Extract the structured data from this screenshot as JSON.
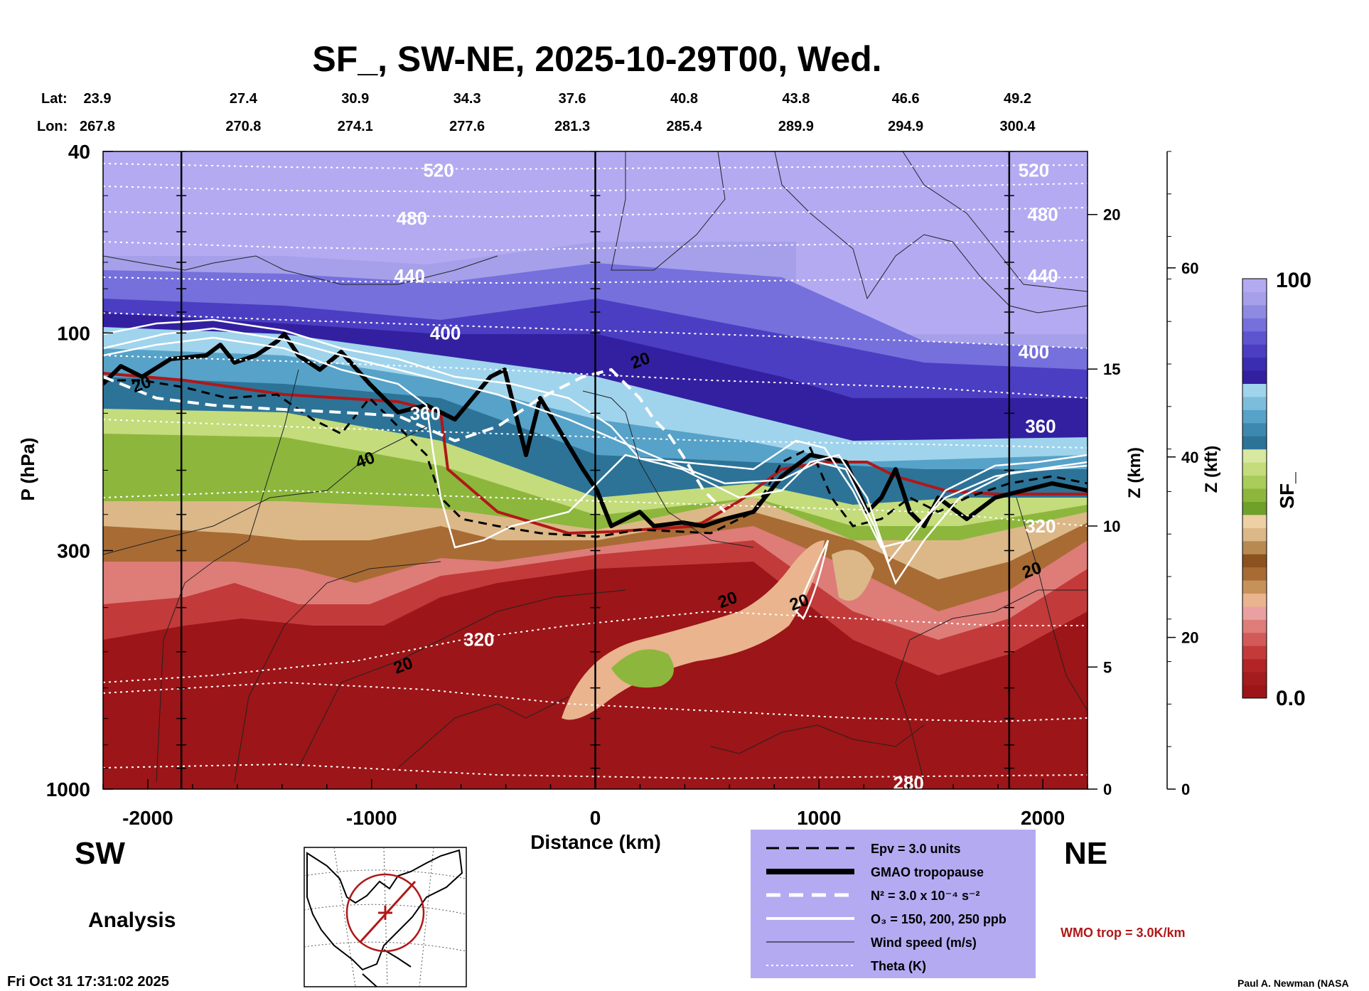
{
  "chart_data": {
    "type": "heatmap",
    "title": "SF_, SW-NE, 2025-10-29T00, Wed.",
    "xlabel": "Distance (km)",
    "ylabel": "P (hPa)",
    "z_km_label": "Z (km)",
    "z_kft_label": "Z (kft)",
    "colorbar_label": "SF_",
    "xlim": [
      -2200,
      2200
    ],
    "ylim": [
      1000,
      40
    ],
    "y_scale": "log",
    "x_ticks": [
      -2000,
      -1000,
      0,
      1000,
      2000
    ],
    "x_tick_labels": [
      "-2000",
      "-1000",
      "0",
      "1000",
      "2000"
    ],
    "y_ticks": [
      1000,
      300,
      100,
      40
    ],
    "y_tick_labels": [
      "1000",
      "300",
      "100",
      "40"
    ],
    "z_km_ticks": [
      {
        "p": 1000,
        "label": "0"
      },
      {
        "p": 540,
        "label": "5"
      },
      {
        "p": 265,
        "label": "10"
      },
      {
        "p": 120,
        "label": "15"
      },
      {
        "p": 55,
        "label": "20"
      }
    ],
    "z_kft_ticks": [
      {
        "p": 1000,
        "label": "0"
      },
      {
        "p": 465,
        "label": "20"
      },
      {
        "p": 187,
        "label": "40"
      },
      {
        "p": 72,
        "label": "60"
      }
    ],
    "colorbar": {
      "min_label": "0.0",
      "max_label": "100",
      "colors": [
        "#9c1518",
        "#a41c1e",
        "#b22426",
        "#c23a3a",
        "#d25a58",
        "#de7c78",
        "#eaa0a0",
        "#e9b48e",
        "#c79259",
        "#a86b34",
        "#8c5220",
        "#b88a52",
        "#dcb888",
        "#eed0a4",
        "#6ea02a",
        "#8cb73c",
        "#a9cc5a",
        "#c4dc7c",
        "#d9e8a0",
        "#2d7398",
        "#3d88b1",
        "#57a2c8",
        "#7dbddc",
        "#a0d4ec",
        "#3320a0",
        "#3b2cb0",
        "#4b3ec2",
        "#5e54d0",
        "#7570dc",
        "#8e8ae2",
        "#a6a0ea",
        "#b4aaf2"
      ]
    },
    "lat_label": "Lat:",
    "lon_label": "Lon:",
    "coords": [
      {
        "x": -2200,
        "lat": "23.9",
        "lon": "267.8"
      },
      {
        "x": -1700,
        "lat": "27.4",
        "lon": "270.8"
      },
      {
        "x": -1200,
        "lat": "30.9",
        "lon": "274.1"
      },
      {
        "x": -700,
        "lat": "34.3",
        "lon": "277.6"
      },
      {
        "x": -230,
        "lat": "37.6",
        "lon": "281.3"
      },
      {
        "x": 270,
        "lat": "40.8",
        "lon": "285.4"
      },
      {
        "x": 770,
        "lat": "43.8",
        "lon": "289.9"
      },
      {
        "x": 1260,
        "lat": "46.6",
        "lon": "294.9"
      },
      {
        "x": 1760,
        "lat": "49.2",
        "lon": "300.4"
      }
    ],
    "vertical_lines_x": [
      -1850,
      0,
      1850
    ],
    "theta_labels": [
      {
        "x": -700,
        "p": 44,
        "label": "520"
      },
      {
        "x": -820,
        "p": 56,
        "label": "480"
      },
      {
        "x": -830,
        "p": 75,
        "label": "440"
      },
      {
        "x": -670,
        "p": 100,
        "label": "400"
      },
      {
        "x": -760,
        "p": 150,
        "label": "360"
      },
      {
        "x": -520,
        "p": 470,
        "label": "320"
      },
      {
        "x": 1400,
        "p": 970,
        "label": "280"
      },
      {
        "x": 1960,
        "p": 44,
        "label": "520"
      },
      {
        "x": 2000,
        "p": 55,
        "label": "480"
      },
      {
        "x": 2000,
        "p": 75,
        "label": "440"
      },
      {
        "x": 1960,
        "p": 110,
        "label": "400"
      },
      {
        "x": 1990,
        "p": 160,
        "label": "360"
      },
      {
        "x": 1990,
        "p": 265,
        "label": "320"
      }
    ],
    "wind_labels": [
      {
        "x": -2020,
        "p": 133,
        "label": "20"
      },
      {
        "x": -1020,
        "p": 195,
        "label": "40"
      },
      {
        "x": 210,
        "p": 118,
        "label": "20"
      },
      {
        "x": 600,
        "p": 395,
        "label": "20"
      },
      {
        "x": 920,
        "p": 400,
        "label": "20"
      },
      {
        "x": -850,
        "p": 550,
        "label": "20"
      },
      {
        "x": 1960,
        "p": 340,
        "label": "20"
      }
    ],
    "region_left": "SW",
    "region_right": "NE",
    "analysis_label": "Analysis",
    "legend": [
      {
        "style": "dashed-black",
        "label": "Epv = 3.0 units"
      },
      {
        "style": "thick-black",
        "label": "GMAO tropopause"
      },
      {
        "style": "dashed-white",
        "label": "N² = 3.0 x 10⁻⁴ s⁻²"
      },
      {
        "style": "solid-white",
        "label": "O₃ = 150, 200, 250 ppb"
      },
      {
        "style": "thin-black",
        "label": "Wind speed (m/s)"
      },
      {
        "style": "dotted-white",
        "label": "Theta (K)"
      }
    ],
    "wmo_label": "WMO trop = 3.0K/km",
    "wmo_color": "#b01818",
    "timestamp": "Fri Oct 31 17:31:02 2025",
    "credit": "Paul A. Newman (NASA"
  }
}
